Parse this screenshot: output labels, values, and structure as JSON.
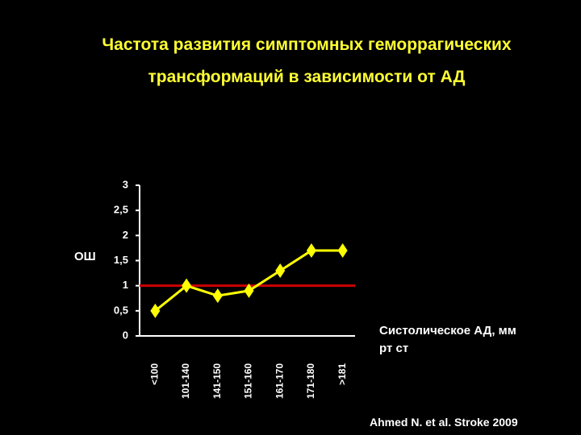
{
  "chart_data": {
    "type": "line",
    "title": "Частота развития симптомных геморрагических трансформаций в зависимости от АД",
    "y_label": "ОШ",
    "x_label": "Систолическое АД, мм рт ст",
    "source": "Ahmed N. et al. Stroke 2009",
    "categories": [
      "<100",
      "101-140",
      "141-150",
      "151-160",
      "161-170",
      "171-180",
      ">181"
    ],
    "values": [
      0.5,
      1.0,
      0.8,
      0.9,
      1.3,
      1.7,
      1.7
    ],
    "color": "#ffff00",
    "reference_line": 1,
    "reference_color": "#cc0000",
    "ylim": [
      0,
      3
    ],
    "yticks": [
      0,
      {
        "value": 0.5,
        "label": "0,5"
      },
      1,
      {
        "value": 1.5,
        "label": "1,5"
      },
      2,
      {
        "value": 2.5,
        "label": "2,5"
      },
      3
    ]
  }
}
